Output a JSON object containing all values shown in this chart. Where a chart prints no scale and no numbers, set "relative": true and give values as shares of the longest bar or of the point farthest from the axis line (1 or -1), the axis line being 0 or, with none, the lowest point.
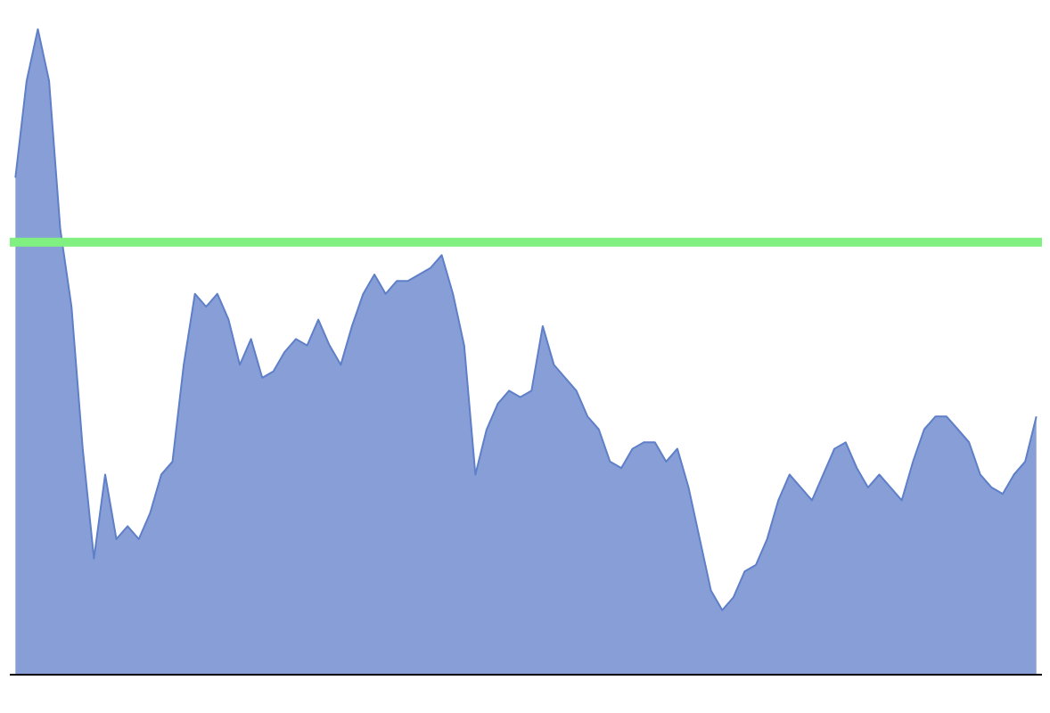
{
  "chart_data": {
    "type": "area",
    "relative": true,
    "categories": [
      null,
      null,
      null,
      null,
      null,
      null,
      null,
      null,
      null,
      null,
      null,
      null,
      null,
      null,
      null,
      null,
      null,
      null,
      null,
      null,
      null,
      null,
      null,
      null,
      null,
      null,
      null,
      null,
      null,
      null,
      null,
      null,
      null,
      null,
      null,
      null,
      null,
      null,
      null,
      null,
      null,
      null,
      null,
      null,
      null,
      null,
      null,
      null,
      null,
      null,
      null,
      null,
      null,
      null,
      null,
      null,
      null,
      null,
      null,
      null,
      null,
      null,
      null,
      null,
      null,
      null,
      null,
      null,
      null,
      null,
      null,
      null,
      null,
      null,
      null,
      null,
      null,
      null,
      null,
      null,
      null,
      null,
      null,
      null,
      null,
      null,
      null,
      null,
      null,
      null,
      null,
      null
    ],
    "series": [
      {
        "color": "#5f7fc8",
        "values": [
          0.77,
          0.92,
          1.0,
          0.92,
          0.69,
          0.57,
          0.35,
          0.18,
          0.31,
          0.21,
          0.23,
          0.21,
          0.25,
          0.31,
          0.33,
          0.48,
          0.59,
          0.57,
          0.59,
          0.55,
          0.48,
          0.52,
          0.46,
          0.47,
          0.5,
          0.52,
          0.51,
          0.55,
          0.51,
          0.48,
          0.54,
          0.59,
          0.62,
          0.59,
          0.61,
          0.61,
          0.62,
          0.63,
          0.65,
          0.59,
          0.51,
          0.31,
          0.38,
          0.42,
          0.44,
          0.43,
          0.44,
          0.54,
          0.48,
          0.46,
          0.44,
          0.4,
          0.38,
          0.33,
          0.32,
          0.35,
          0.36,
          0.36,
          0.33,
          0.35,
          0.29,
          0.21,
          0.13,
          0.1,
          0.12,
          0.16,
          0.17,
          0.21,
          0.27,
          0.31,
          0.29,
          0.27,
          0.31,
          0.35,
          0.36,
          0.32,
          0.29,
          0.31,
          0.29,
          0.27,
          0.33,
          0.38,
          0.4,
          0.4,
          0.38,
          0.36,
          0.31,
          0.29,
          0.28,
          0.31,
          0.33,
          0.4
        ]
      }
    ],
    "ref_lines": [
      {
        "axis": "y",
        "value": 0.67,
        "color": "#80f080"
      }
    ]
  }
}
